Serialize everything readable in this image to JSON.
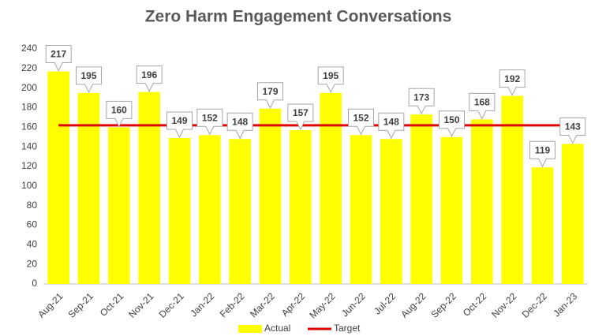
{
  "chart_data": {
    "type": "bar",
    "title": "Zero Harm Engagement Conversations",
    "categories": [
      "Aug-21",
      "Sep-21",
      "Oct-21",
      "Nov-21",
      "Dec-21",
      "Jan-22",
      "Feb-22",
      "Mar-22",
      "Apr-22",
      "May-22",
      "Jun-22",
      "Jul-22",
      "Aug-22",
      "Sep-22",
      "Oct-22",
      "Nov-22",
      "Dec-22",
      "Jan-23"
    ],
    "series": [
      {
        "name": "Actual",
        "type": "bar",
        "color": "#ffff00",
        "values": [
          217,
          195,
          160,
          196,
          149,
          152,
          148,
          179,
          157,
          195,
          152,
          148,
          173,
          150,
          168,
          192,
          119,
          143
        ]
      },
      {
        "name": "Target",
        "type": "line",
        "color": "#e00000",
        "values": [
          162,
          162,
          162,
          162,
          162,
          162,
          162,
          162,
          162,
          162,
          162,
          162,
          162,
          162,
          162,
          162,
          162,
          162
        ]
      }
    ],
    "ylim": [
      0,
      240
    ],
    "yticks": [
      0,
      20,
      40,
      60,
      80,
      100,
      120,
      140,
      160,
      180,
      200,
      220,
      240
    ],
    "grid": false,
    "legend": "bottom"
  }
}
